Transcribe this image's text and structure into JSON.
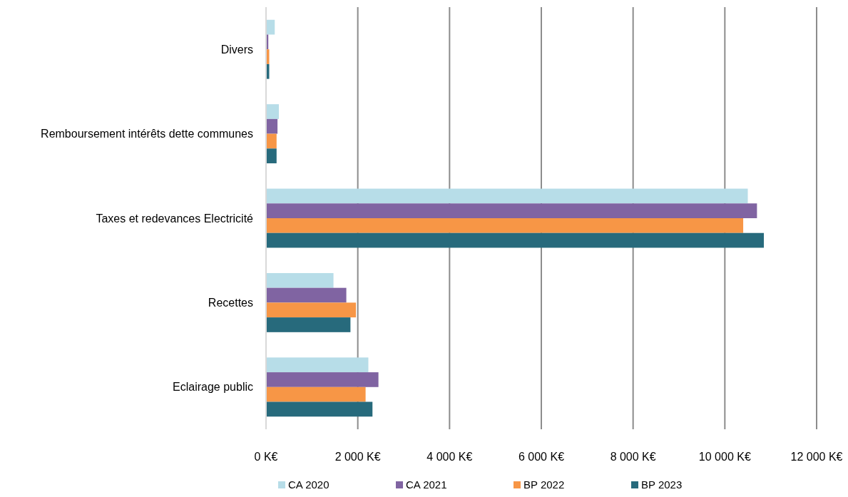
{
  "chart_data": {
    "type": "bar",
    "orientation": "horizontal",
    "categories": [
      "Divers",
      "Remboursement intérêts dette communes",
      "Taxes et redevances Electricité",
      "Recettes",
      "Eclairage public"
    ],
    "series": [
      {
        "name": "CA  2020",
        "color": "#b7dde8",
        "values": [
          190,
          280,
          10500,
          1470,
          2230
        ]
      },
      {
        "name": "CA 2021",
        "color": "#8064a2",
        "values": [
          50,
          250,
          10700,
          1750,
          2450
        ]
      },
      {
        "name": "BP 2022",
        "color": "#f79646",
        "values": [
          70,
          230,
          10400,
          1960,
          2170
        ]
      },
      {
        "name": "BP 2023",
        "color": "#276a7c",
        "values": [
          70,
          230,
          10850,
          1840,
          2320
        ]
      }
    ],
    "xlim": [
      0,
      12000
    ],
    "xticks": [
      {
        "value": 0,
        "label": "0 K€"
      },
      {
        "value": 2000,
        "label": "2 000 K€"
      },
      {
        "value": 4000,
        "label": "4 000 K€"
      },
      {
        "value": 6000,
        "label": "6 000 K€"
      },
      {
        "value": 8000,
        "label": "8 000 K€"
      },
      {
        "value": 10000,
        "label": "10 000 K€"
      },
      {
        "value": 12000,
        "label": "12 000 K€"
      }
    ],
    "grid": "x",
    "legend": "bottom"
  }
}
